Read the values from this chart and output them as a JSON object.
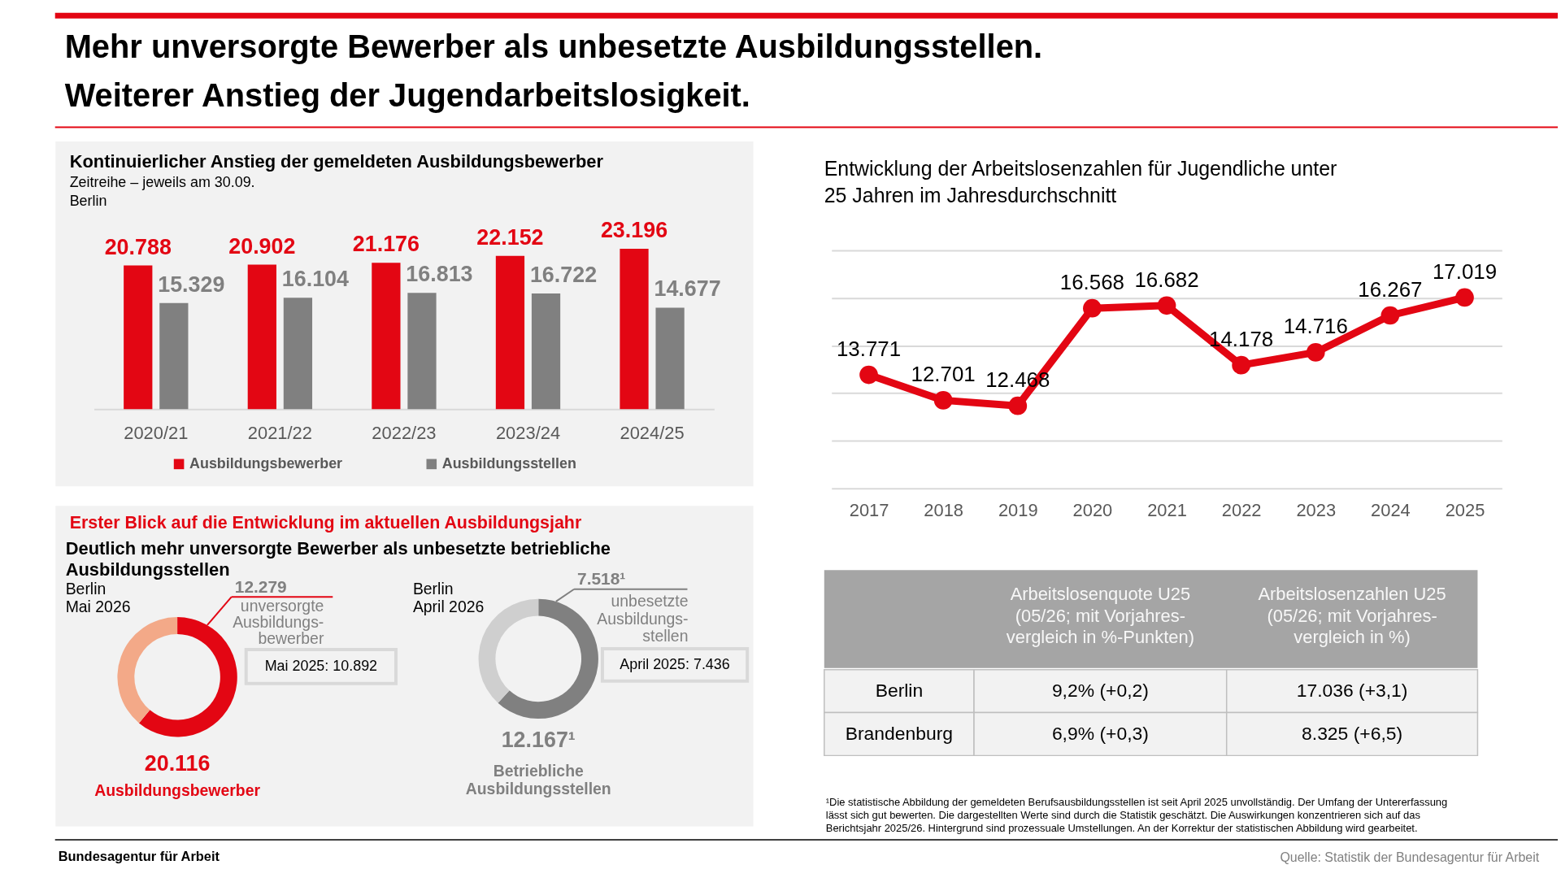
{
  "chart_data": [
    {
      "type": "other",
      "title": "Mehr unversorgte Bewerber als unbesetzte Ausbildungsstellen.\nWeiterer Anstieg der Jugendarbeitslosigkeit.",
      "annotations": [
        "Bundesagentur für Arbeit",
        "Quelle: Statistik der Bundesagentur für Arbeit"
      ]
    },
    {
      "type": "bar",
      "title": "Kontinuierlicher Anstieg der gemeldeten Ausbildungsbewerber",
      "subtitle": "Zeitreihe – jeweils am 30.09.\nBerlin",
      "categories": [
        "2020/21",
        "2021/22",
        "2022/23",
        "2023/24",
        "2024/25"
      ],
      "series": [
        {
          "name": "Ausbildungsbewerber",
          "color": "#e30613",
          "values": [
            20788,
            20902,
            21176,
            22152,
            23196
          ],
          "value_labels": [
            "20.788",
            "20.902",
            "21.176",
            "22.152",
            "23.196"
          ]
        },
        {
          "name": "Ausbildungsstellen",
          "color": "#808080",
          "values": [
            15329,
            16104,
            16813,
            16722,
            14677
          ],
          "value_labels": [
            "15.329",
            "16.104",
            "16.813",
            "16.722",
            "14.677"
          ]
        }
      ],
      "legend": "bottom"
    },
    {
      "type": "line",
      "title": "Entwicklung der Arbeitslosenzahlen für Jugendliche unter\n25 Jahren im Jahresdurchschnitt",
      "categories": [
        "2017",
        "2018",
        "2019",
        "2020",
        "2021",
        "2022",
        "2023",
        "2024",
        "2025"
      ],
      "series": [
        {
          "color": "#e30613",
          "values": [
            13771,
            12701,
            12468,
            16568,
            16682,
            14178,
            14716,
            16267,
            17019
          ],
          "value_labels": [
            "13.771",
            "12.701",
            "12.468",
            "16.568",
            "16.682",
            "14.178",
            "14.716",
            "16.267",
            "17.019"
          ]
        }
      ],
      "ylim": [
        9000,
        19000
      ],
      "yticks": [
        {
          "value": 9000,
          "label": null
        },
        {
          "value": 11000,
          "label": null
        },
        {
          "value": 13000,
          "label": null
        },
        {
          "value": 15000,
          "label": null
        },
        {
          "value": 17000,
          "label": null
        },
        {
          "value": 19000,
          "label": null
        }
      ],
      "tick_labels": "x",
      "grid": "y",
      "marker": "circle"
    },
    {
      "type": "donut",
      "title": "Erster Blick auf die Entwicklung im aktuellen Ausbildungsjahr",
      "subtitle": "Deutlich mehr unversorgte Bewerber als unbesetzte betriebliche\nAusbildungsstellen",
      "categories": [
        "unversorgte\nAusbildungs-\nbewerber",
        null
      ],
      "values": [
        12279,
        7837
      ],
      "colors": [
        "#e30613",
        "#f3a988"
      ],
      "value_labels": [
        "12.279",
        null
      ],
      "annotations": [
        "Berlin\nMai 2026",
        "Mai 2025: 10.892",
        "20.116",
        "Ausbildungsbewerber"
      ]
    },
    {
      "type": "donut",
      "categories": [
        "unbesetzte\nAusbildungs-\nstellen",
        null
      ],
      "values": [
        7518,
        4649
      ],
      "colors": [
        "#808080",
        "#cfcfcf"
      ],
      "value_labels": [
        "7.518¹",
        null
      ],
      "annotations": [
        "Berlin\nApril 2026",
        "April 2025: 7.436",
        "12.167¹",
        "Betriebliche\nAusbildungsstellen"
      ]
    },
    {
      "type": "other",
      "categories": [
        "Arbeitslosenquote U25\n(05/26; mit Vorjahres-\nvergleich in %-Punkten)",
        "Arbeitslosenzahlen U25\n(05/26; mit Vorjahres-\nvergleich in %)"
      ],
      "y_categories": [
        "Berlin",
        "Brandenburg"
      ],
      "cell_labels": [
        [
          "9,2% (+0,2)",
          "17.036 (+3,1)"
        ],
        [
          "6,9% (+0,3)",
          "8.325 (+6,5)"
        ]
      ],
      "annotations": [
        "¹Die statistische Abbildung der gemeldeten Berufsausbildungsstellen ist seit April 2025 unvollständig. Der Umfang der Untererfassung\nlässt sich gut bewerten. Die dargestellten Werte sind durch die Statistik geschätzt. Die Auswirkungen konzentrieren sich auf das\nBerichtsjahr 2025/26. Hintergrund sind prozessuale Umstellungen. An der Korrektur der statistischen Abbildung wird gearbeitet."
      ]
    }
  ]
}
